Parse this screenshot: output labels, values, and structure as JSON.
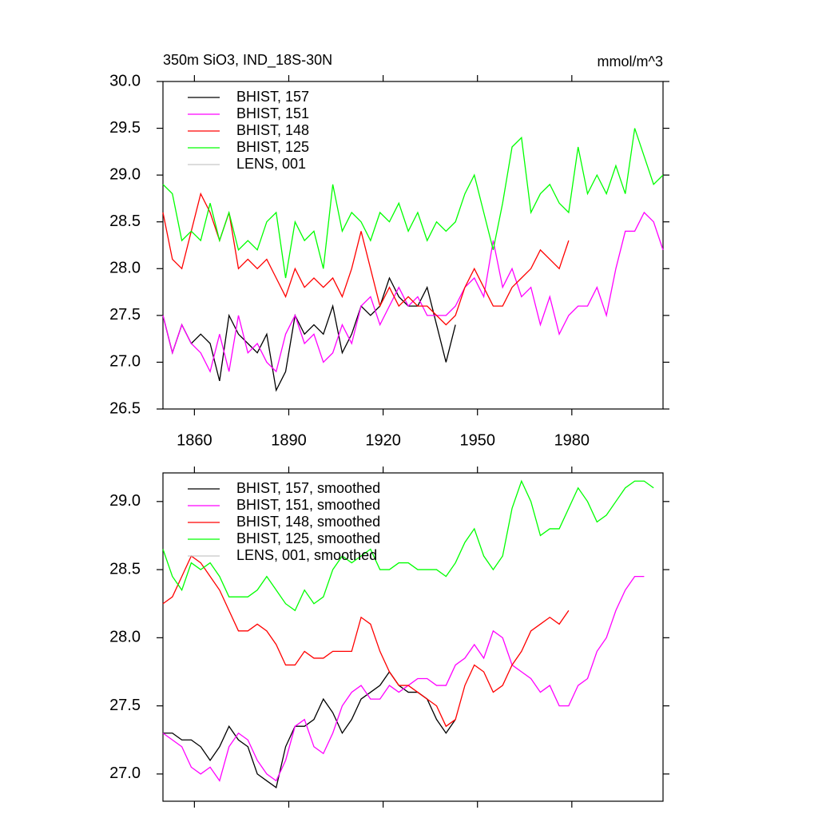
{
  "chart_data": [
    {
      "type": "line",
      "title": "350m SiO3, IND_18S-30N",
      "units_label": "mmol/m^3",
      "x": [
        1850,
        1853,
        1856,
        1859,
        1862,
        1865,
        1868,
        1871,
        1874,
        1877,
        1880,
        1883,
        1886,
        1889,
        1892,
        1895,
        1898,
        1901,
        1904,
        1907,
        1910,
        1913,
        1916,
        1919,
        1922,
        1925,
        1928,
        1931,
        1934,
        1937,
        1940,
        1943,
        1946,
        1949,
        1952,
        1955,
        1958,
        1961,
        1964,
        1967,
        1970,
        1973,
        1976,
        1979,
        1982,
        1985,
        1988,
        1991,
        1994,
        1997,
        2000,
        2003,
        2006,
        2009
      ],
      "xlim": [
        1850,
        2009
      ],
      "xticks": [
        1860,
        1890,
        1920,
        1950,
        1980
      ],
      "ylim": [
        26.5,
        30.0
      ],
      "yticks": [
        26.5,
        {
          "value": 27.0,
          "label": "27.0"
        },
        27.5,
        {
          "value": 28.0,
          "label": "28.0"
        },
        28.5,
        {
          "value": 29.0,
          "label": "29.0"
        },
        29.5,
        {
          "value": 30.0,
          "label": "30.0"
        }
      ],
      "legend": "upper left",
      "series": [
        {
          "name": "BHIST, 157",
          "color": "#000000",
          "values": [
            27.5,
            27.1,
            27.4,
            27.2,
            27.3,
            27.2,
            26.8,
            27.5,
            27.3,
            27.2,
            27.1,
            27.3,
            26.7,
            26.9,
            27.5,
            27.3,
            27.4,
            27.3,
            27.6,
            27.1,
            27.3,
            27.6,
            27.5,
            27.6,
            27.9,
            27.7,
            27.6,
            27.6,
            27.8,
            27.4,
            27.0,
            27.4,
            null,
            null,
            null,
            null,
            null,
            null,
            null,
            null,
            null,
            null,
            null,
            null,
            null,
            null,
            null,
            null,
            null,
            null,
            null,
            null,
            null,
            null
          ]
        },
        {
          "name": "BHIST, 151",
          "color": "#ff00ff",
          "values": [
            27.5,
            27.1,
            27.4,
            27.2,
            27.1,
            26.9,
            27.3,
            26.9,
            27.5,
            27.1,
            27.2,
            27.0,
            26.9,
            27.3,
            27.5,
            27.2,
            27.3,
            27.0,
            27.1,
            27.4,
            27.2,
            27.6,
            27.7,
            27.4,
            27.6,
            27.8,
            27.6,
            27.7,
            27.5,
            27.5,
            27.5,
            27.6,
            27.8,
            27.9,
            27.7,
            28.3,
            27.8,
            28.0,
            27.7,
            27.8,
            27.4,
            27.7,
            27.3,
            27.5,
            27.6,
            27.6,
            27.8,
            27.5,
            28.0,
            28.4,
            28.4,
            28.6,
            28.5,
            28.2
          ]
        },
        {
          "name": "BHIST, 148",
          "color": "#ff0000",
          "values": [
            28.6,
            28.1,
            28.0,
            28.4,
            28.8,
            28.6,
            28.3,
            28.6,
            28.0,
            28.1,
            28.0,
            28.1,
            27.9,
            27.7,
            28.0,
            27.8,
            27.9,
            27.8,
            27.9,
            27.7,
            28.0,
            28.4,
            28.0,
            27.6,
            27.8,
            27.6,
            27.7,
            27.6,
            27.6,
            27.5,
            27.4,
            27.5,
            27.8,
            28.0,
            27.8,
            27.6,
            27.6,
            27.8,
            27.9,
            28.0,
            28.2,
            28.1,
            28.0,
            28.3,
            null,
            null,
            null,
            null,
            null,
            null,
            null,
            null,
            null,
            null
          ]
        },
        {
          "name": "BHIST, 125",
          "color": "#00ff00",
          "values": [
            28.9,
            28.8,
            28.3,
            28.4,
            28.3,
            28.7,
            28.3,
            28.6,
            28.2,
            28.3,
            28.2,
            28.5,
            28.6,
            27.9,
            28.5,
            28.3,
            28.4,
            28.0,
            28.9,
            28.4,
            28.6,
            28.5,
            28.3,
            28.6,
            28.5,
            28.7,
            28.4,
            28.6,
            28.3,
            28.5,
            28.4,
            28.5,
            28.8,
            29.0,
            28.6,
            28.2,
            28.7,
            29.3,
            29.4,
            28.6,
            28.8,
            28.9,
            28.7,
            28.6,
            29.3,
            28.8,
            29.0,
            28.8,
            29.1,
            28.8,
            29.5,
            29.2,
            28.9,
            29.0
          ]
        },
        {
          "name": "LENS, 001",
          "color": "#c8c8c8",
          "values": [
            null,
            null,
            null,
            null,
            null,
            null,
            null,
            null,
            null,
            null,
            null,
            null,
            null,
            null,
            null,
            null,
            null,
            null,
            null,
            null,
            null,
            null,
            null,
            null,
            null,
            null,
            null,
            null,
            null,
            null,
            null,
            null,
            null,
            null,
            null,
            null,
            null,
            null,
            null,
            null,
            null,
            null,
            null,
            null,
            null,
            null,
            null,
            null,
            null,
            null,
            null,
            null,
            null,
            null
          ]
        }
      ]
    },
    {
      "type": "line",
      "x": [
        1850,
        1853,
        1856,
        1859,
        1862,
        1865,
        1868,
        1871,
        1874,
        1877,
        1880,
        1883,
        1886,
        1889,
        1892,
        1895,
        1898,
        1901,
        1904,
        1907,
        1910,
        1913,
        1916,
        1919,
        1922,
        1925,
        1928,
        1931,
        1934,
        1937,
        1940,
        1943,
        1946,
        1949,
        1952,
        1955,
        1958,
        1961,
        1964,
        1967,
        1970,
        1973,
        1976,
        1979,
        1982,
        1985,
        1988,
        1991,
        1994,
        1997,
        2000,
        2003,
        2006,
        2009
      ],
      "xlim": [
        1850,
        2009
      ],
      "xticks": [
        1860,
        1890,
        1920,
        1950,
        1980
      ],
      "ylim": [
        26.8,
        29.21
      ],
      "yticks": [
        {
          "value": 27.0,
          "label": "27.0"
        },
        27.5,
        {
          "value": 28.0,
          "label": "28.0"
        },
        28.5,
        {
          "value": 29.0,
          "label": "29.0"
        }
      ],
      "legend": "upper left",
      "series": [
        {
          "name": "BHIST, 157, smoothed",
          "color": "#000000",
          "values": [
            27.3,
            27.3,
            27.25,
            27.25,
            27.2,
            27.1,
            27.2,
            27.35,
            27.25,
            27.2,
            27.0,
            26.95,
            26.9,
            27.2,
            27.35,
            27.35,
            27.4,
            27.55,
            27.45,
            27.3,
            27.4,
            27.55,
            27.6,
            27.65,
            27.75,
            27.65,
            27.6,
            27.6,
            27.55,
            27.4,
            27.3,
            27.4,
            null,
            null,
            null,
            null,
            null,
            null,
            null,
            null,
            null,
            null,
            null,
            null,
            null,
            null,
            null,
            null,
            null,
            null,
            null,
            null,
            null,
            null
          ]
        },
        {
          "name": "BHIST, 151, smoothed",
          "color": "#ff00ff",
          "values": [
            27.3,
            27.25,
            27.2,
            27.05,
            27.0,
            27.05,
            26.95,
            27.2,
            27.3,
            27.25,
            27.1,
            27.0,
            26.95,
            27.1,
            27.35,
            27.4,
            27.2,
            27.15,
            27.3,
            27.5,
            27.6,
            27.65,
            27.55,
            27.55,
            27.65,
            27.6,
            27.65,
            27.7,
            27.7,
            27.65,
            27.65,
            27.8,
            27.85,
            27.95,
            27.85,
            28.05,
            28.0,
            27.8,
            27.75,
            27.7,
            27.6,
            27.65,
            27.5,
            27.5,
            27.65,
            27.7,
            27.9,
            28.0,
            28.2,
            28.35,
            28.45,
            28.45,
            null,
            null
          ]
        },
        {
          "name": "BHIST, 148, smoothed",
          "color": "#ff0000",
          "values": [
            28.25,
            28.3,
            28.45,
            28.6,
            28.55,
            28.45,
            28.35,
            28.2,
            28.05,
            28.05,
            28.1,
            28.05,
            27.95,
            27.8,
            27.8,
            27.9,
            27.85,
            27.85,
            27.9,
            27.9,
            27.9,
            28.15,
            28.1,
            27.9,
            27.75,
            27.65,
            27.65,
            27.6,
            27.55,
            27.5,
            27.35,
            27.4,
            27.65,
            27.8,
            27.75,
            27.6,
            27.65,
            27.8,
            27.9,
            28.05,
            28.1,
            28.15,
            28.1,
            28.2,
            null,
            null,
            null,
            null,
            null,
            null,
            null,
            null,
            null,
            null
          ]
        },
        {
          "name": "BHIST, 125, smoothed",
          "color": "#00ff00",
          "values": [
            28.65,
            28.45,
            28.35,
            28.55,
            28.5,
            28.55,
            28.45,
            28.3,
            28.3,
            28.3,
            28.35,
            28.45,
            28.35,
            28.25,
            28.2,
            28.35,
            28.25,
            28.3,
            28.5,
            28.6,
            28.55,
            28.6,
            28.65,
            28.5,
            28.5,
            28.55,
            28.55,
            28.5,
            28.5,
            28.5,
            28.45,
            28.55,
            28.7,
            28.8,
            28.6,
            28.5,
            28.6,
            28.95,
            29.15,
            29.0,
            28.75,
            28.8,
            28.8,
            28.95,
            29.1,
            29.0,
            28.85,
            28.9,
            29.0,
            29.1,
            29.15,
            29.15,
            29.1,
            null
          ]
        },
        {
          "name": "LENS, 001, smoothed",
          "color": "#c8c8c8",
          "values": [
            null,
            null,
            null,
            null,
            null,
            null,
            null,
            null,
            null,
            null,
            null,
            null,
            null,
            null,
            null,
            null,
            null,
            null,
            null,
            null,
            null,
            null,
            null,
            null,
            null,
            null,
            null,
            null,
            null,
            null,
            null,
            null,
            null,
            null,
            null,
            null,
            null,
            null,
            null,
            null,
            null,
            null,
            null,
            null,
            null,
            null,
            null,
            null,
            null,
            null,
            null,
            null,
            null,
            null
          ]
        }
      ]
    }
  ]
}
